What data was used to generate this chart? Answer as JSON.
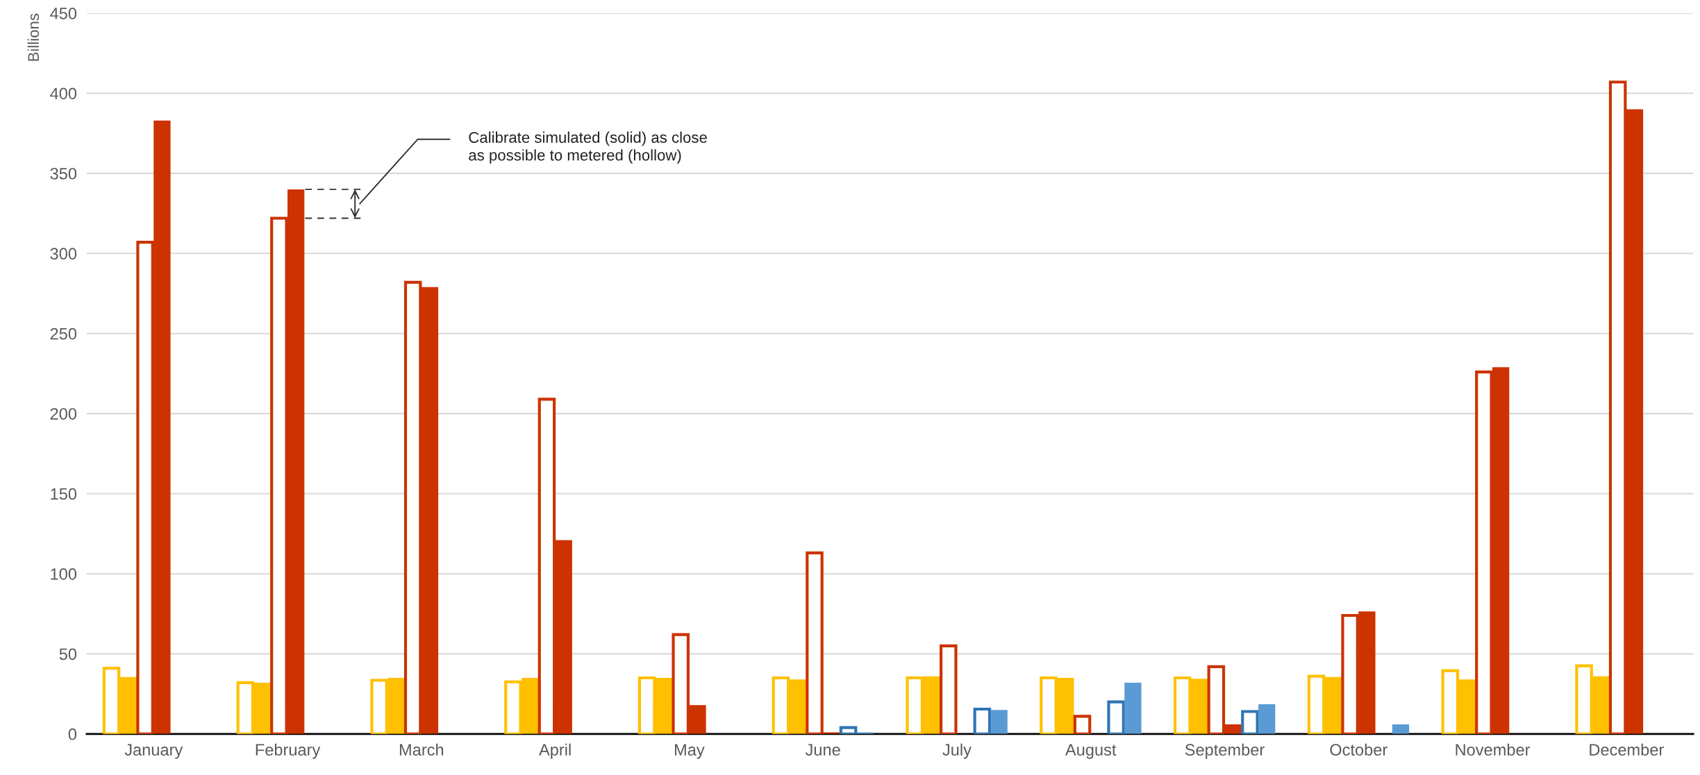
{
  "chart_data": {
    "type": "bar",
    "ylabel": "Billions",
    "categories": [
      "January",
      "February",
      "March",
      "April",
      "May",
      "June",
      "July",
      "August",
      "September",
      "October",
      "November",
      "December"
    ],
    "series": [
      {
        "color": "#ffc000",
        "values": [
          41,
          32,
          33.5,
          32.5,
          35,
          35,
          35,
          35,
          35,
          36,
          39.5,
          42.5
        ]
      },
      {
        "color": "#ffc000",
        "values": [
          35.5,
          32,
          35,
          35,
          35,
          34,
          36,
          35,
          34.5,
          35.5,
          34,
          36
        ]
      },
      {
        "color": "#cc3300",
        "values": [
          307,
          322,
          282,
          209,
          62,
          113,
          55,
          11,
          42,
          74,
          226,
          407
        ]
      },
      {
        "color": "#cc3300",
        "values": [
          383,
          340,
          279,
          121,
          18,
          1,
          null,
          null,
          6,
          76.5,
          229,
          390
        ]
      },
      {
        "color": "#2e75b6",
        "values": [
          null,
          null,
          null,
          null,
          null,
          4,
          15.5,
          20,
          14,
          null,
          null,
          null
        ]
      },
      {
        "color": "#5b9bd5",
        "values": [
          null,
          null,
          null,
          null,
          null,
          1,
          15,
          32,
          18.5,
          6,
          null,
          null
        ]
      }
    ],
    "annotations": [
      "Calibrate simulated (solid) as close\nas possible to metered (hollow)"
    ],
    "ylim": [
      0,
      450
    ],
    "yticks": [
      0,
      50,
      100,
      150,
      200,
      250,
      300,
      350,
      400,
      450
    ],
    "grid": "y",
    "legend": false
  }
}
